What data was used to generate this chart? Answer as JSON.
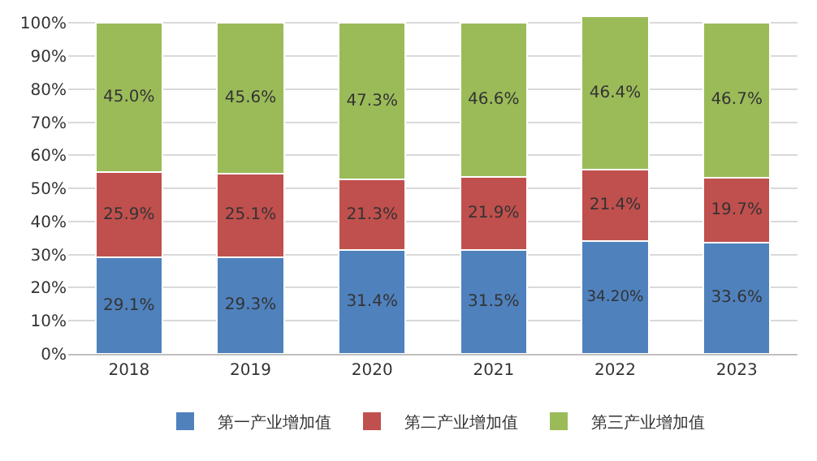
{
  "chart_data": {
    "type": "bar",
    "stacked": true,
    "categories": [
      "2018",
      "2019",
      "2020",
      "2021",
      "2022",
      "2023"
    ],
    "series": [
      {
        "name": "第一产业增加值",
        "color": "#4f81bd",
        "values": [
          29.1,
          29.3,
          31.4,
          31.5,
          34.2,
          33.6
        ],
        "value_labels": [
          "29.1%",
          "29.3%",
          "31.4%",
          "31.5%",
          "34.20%",
          "33.6%"
        ]
      },
      {
        "name": "第二产业增加值",
        "color": "#c0504d",
        "values": [
          25.9,
          25.1,
          21.3,
          21.9,
          21.4,
          19.7
        ],
        "value_labels": [
          "25.9%",
          "25.1%",
          "21.3%",
          "21.9%",
          "21.4%",
          "19.7%"
        ]
      },
      {
        "name": "第三产业增加值",
        "color": "#9bbb59",
        "values": [
          45.0,
          45.6,
          47.3,
          46.6,
          46.4,
          46.7
        ],
        "value_labels": [
          "45.0%",
          "45.6%",
          "47.3%",
          "46.6%",
          "46.4%",
          "46.7%"
        ]
      }
    ],
    "ylim": [
      0,
      102
    ],
    "yticks": [
      {
        "value": 0,
        "label": "0%"
      },
      {
        "value": 10,
        "label": "10%"
      },
      {
        "value": 20,
        "label": "20%"
      },
      {
        "value": 30,
        "label": "30%"
      },
      {
        "value": 40,
        "label": "40%"
      },
      {
        "value": 50,
        "label": "50%"
      },
      {
        "value": 60,
        "label": "60%"
      },
      {
        "value": 70,
        "label": "70%"
      },
      {
        "value": 80,
        "label": "80%"
      },
      {
        "value": 90,
        "label": "90%"
      },
      {
        "value": 100,
        "label": "100%"
      }
    ],
    "grid": "y",
    "legend": "bottom"
  }
}
